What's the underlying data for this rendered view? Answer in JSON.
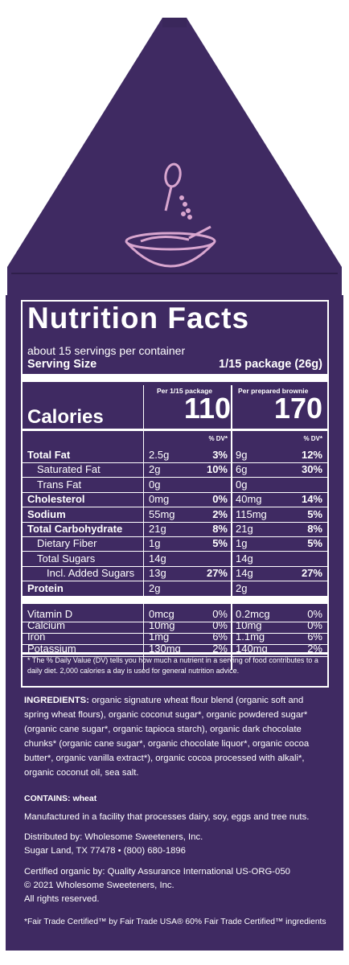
{
  "nutrition": {
    "title": "Nutrition Facts",
    "servings_per_container": "about 15 servings per container",
    "serving_size_label": "Serving Size",
    "serving_size_value": "1/15 package (26g)",
    "col1_header": "Per 1/15 package",
    "col2_header": "Per prepared brownie",
    "calories_label": "Calories",
    "calories_1": "110",
    "calories_2": "170",
    "dv_header": "% DV*",
    "rows": [
      {
        "label": "Total Fat",
        "a1": "2.5g",
        "p1": "3%",
        "a2": "9g",
        "p2": "12%"
      },
      {
        "label": "Saturated Fat",
        "a1": "2g",
        "p1": "10%",
        "a2": "6g",
        "p2": "30%"
      },
      {
        "label": "Trans Fat",
        "a1": "0g",
        "p1": "",
        "a2": "0g",
        "p2": ""
      },
      {
        "label": "Cholesterol",
        "a1": "0mg",
        "p1": "0%",
        "a2": "40mg",
        "p2": "14%"
      },
      {
        "label": "Sodium",
        "a1": "55mg",
        "p1": "2%",
        "a2": "115mg",
        "p2": "5%"
      },
      {
        "label": "Total Carbohydrate",
        "a1": "21g",
        "p1": "8%",
        "a2": "21g",
        "p2": "8%"
      },
      {
        "label": "Dietary Fiber",
        "a1": "1g",
        "p1": "5%",
        "a2": "1g",
        "p2": "5%"
      },
      {
        "label": "Total Sugars",
        "a1": "14g",
        "p1": "",
        "a2": "14g",
        "p2": ""
      },
      {
        "label": "Incl. Added Sugars",
        "a1": "13g",
        "p1": "27%",
        "a2": "14g",
        "p2": "27%"
      },
      {
        "label": "Protein",
        "a1": "2g",
        "p1": "",
        "a2": "2g",
        "p2": ""
      }
    ],
    "vitamins": [
      {
        "label": "Vitamin D",
        "a1": "0mcg",
        "p1": "0%",
        "a2": "0.2mcg",
        "p2": "0%"
      },
      {
        "label": "Calcium",
        "a1": "10mg",
        "p1": "0%",
        "a2": "10mg",
        "p2": "0%"
      },
      {
        "label": "Iron",
        "a1": "1mg",
        "p1": "6%",
        "a2": "1.1mg",
        "p2": "6%"
      },
      {
        "label": "Potassium",
        "a1": "130mg",
        "p1": "2%",
        "a2": "140mg",
        "p2": "2%"
      }
    ],
    "footnote": "* The % Daily Value (DV) tells you how much a nutrient in a serving of food contributes to a daily diet. 2,000 calories a day is used for general nutrition advice."
  },
  "ingredients": {
    "label": "INGREDIENTS:",
    "text": " organic signature wheat flour blend (organic soft and spring wheat flours), organic coconut sugar*, organic powdered sugar* (organic cane sugar*, organic tapioca starch), organic dark chocolate chunks* (organic cane sugar*, organic chocolate liquor*, organic cocoa butter*, organic vanilla extract*), organic cocoa processed with alkali*, organic coconut oil, sea salt.",
    "contains": "CONTAINS: wheat"
  },
  "facility": "Manufactured in a facility that processes dairy, soy, eggs and tree nuts.",
  "distributor": {
    "line1": "Distributed by: Wholesome Sweeteners, Inc.",
    "line2": "Sugar Land, TX 77478 • (800) 680-1896"
  },
  "certified": {
    "line1": "Certified organic by: Quality Assurance International US-ORG-050",
    "line2": "© 2021 Wholesome Sweeteners, Inc.",
    "line3": "All rights reserved."
  },
  "fair_trade": "*Fair Trade Certified™ by Fair Trade USA® 60% Fair Trade Certified™ ingredients",
  "colors": {
    "purple": "#3f2a62",
    "pink": "#d9a6cf",
    "white": "#ffffff"
  },
  "icons": [
    "whisk-icon",
    "bowl-icon",
    "recycle-icon"
  ]
}
